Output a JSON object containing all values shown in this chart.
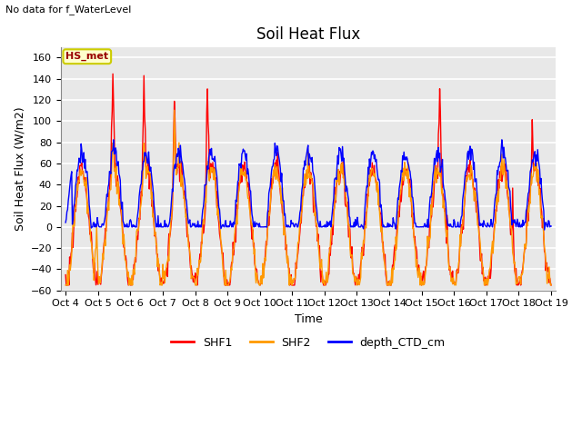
{
  "title": "Soil Heat Flux",
  "subtitle": "No data for f_WaterLevel",
  "xlabel": "Time",
  "ylabel": "Soil Heat Flux (W/m2)",
  "ylim": [
    -60,
    170
  ],
  "yticks": [
    -60,
    -40,
    -20,
    0,
    20,
    40,
    60,
    80,
    100,
    120,
    140,
    160
  ],
  "x_start": 4.0,
  "x_end": 19.0,
  "x_tick_positions": [
    4,
    5,
    6,
    7,
    8,
    9,
    10,
    11,
    12,
    13,
    14,
    15,
    16,
    17,
    18,
    19
  ],
  "x_tick_labels": [
    "Oct 4",
    "Oct 5",
    "Oct 6",
    "Oct 7",
    "Oct 8",
    "Oct 9",
    "Oct 10",
    "Oct 11",
    "Oct 12",
    "Oct 13",
    "Oct 14",
    "Oct 15",
    "Oct 16",
    "Oct 17",
    "Oct 18",
    "Oct 19"
  ],
  "legend_entries": [
    "SHF1",
    "SHF2",
    "depth_CTD_cm"
  ],
  "legend_colors": [
    "#ff0000",
    "#ff9900",
    "#0000ff"
  ],
  "inset_label": "HS_met",
  "inset_bg": "#ffffcc",
  "inset_border": "#cccc00",
  "fig_bg": "#ffffff",
  "plot_bg": "#e8e8e8",
  "grid_color": "#ffffff",
  "title_fontsize": 12,
  "axis_label_fontsize": 9,
  "tick_fontsize": 8,
  "line_width": 1.0
}
